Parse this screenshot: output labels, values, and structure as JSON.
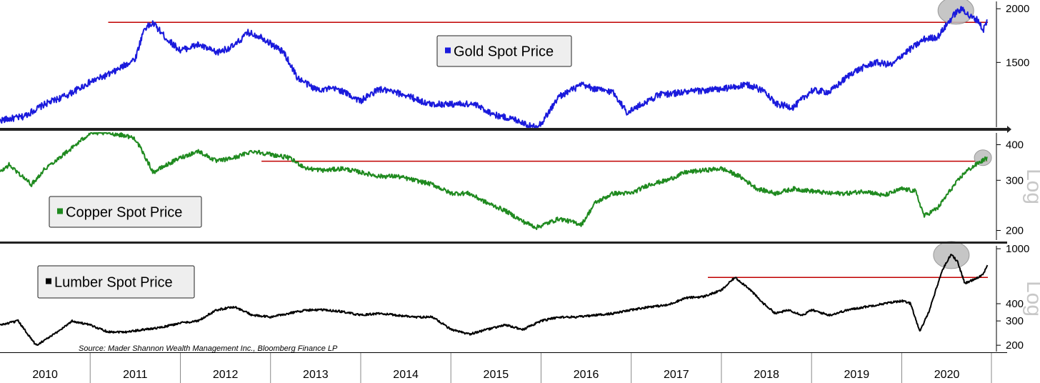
{
  "source": "Source: Mader Shannon Wealth Management Inc., Bloomberg Finance LP",
  "colors": {
    "gold": "#1a1adc",
    "copper": "#1f8a1f",
    "lumber": "#000000",
    "reference_line": "#c00000",
    "highlight": "#bdbdbd"
  },
  "chart_data": [
    {
      "type": "line",
      "title": "",
      "legend": "Gold Spot Price",
      "x": [
        2010.0,
        2010.25,
        2010.5,
        2010.75,
        2011.0,
        2011.25,
        2011.5,
        2011.6,
        2011.7,
        2011.85,
        2012.0,
        2012.2,
        2012.4,
        2012.6,
        2012.75,
        2012.9,
        2013.0,
        2013.15,
        2013.3,
        2013.5,
        2013.75,
        2014.0,
        2014.2,
        2014.5,
        2014.75,
        2015.0,
        2015.25,
        2015.5,
        2015.75,
        2015.9,
        2016.0,
        2016.2,
        2016.45,
        2016.6,
        2016.8,
        2016.95,
        2017.0,
        2017.3,
        2017.6,
        2017.8,
        2018.0,
        2018.3,
        2018.5,
        2018.6,
        2018.8,
        2019.0,
        2019.2,
        2019.45,
        2019.7,
        2019.9,
        2020.0,
        2020.15,
        2020.25,
        2020.4,
        2020.55,
        2020.6,
        2020.68,
        2020.75,
        2020.85,
        2020.9,
        2020.95
      ],
      "y": [
        1100,
        1120,
        1200,
        1260,
        1350,
        1420,
        1530,
        1800,
        1850,
        1700,
        1600,
        1650,
        1580,
        1640,
        1760,
        1720,
        1660,
        1580,
        1380,
        1300,
        1300,
        1220,
        1300,
        1260,
        1200,
        1200,
        1200,
        1130,
        1100,
        1060,
        1080,
        1250,
        1330,
        1300,
        1280,
        1150,
        1160,
        1260,
        1280,
        1290,
        1300,
        1330,
        1280,
        1200,
        1180,
        1290,
        1280,
        1420,
        1500,
        1480,
        1560,
        1640,
        1700,
        1720,
        1900,
        1960,
        2000,
        1920,
        1880,
        1780,
        1880
      ],
      "ylim": [
        1060,
        2080
      ],
      "yticks": [
        1500,
        2000
      ],
      "yscale": "log",
      "reference_line": 1860,
      "highlight": [
        {
          "x": 2020.6,
          "y": 1980
        }
      ]
    },
    {
      "type": "line",
      "title": "",
      "legend": "Copper Spot Price",
      "x": [
        2010.0,
        2010.1,
        2010.35,
        2010.5,
        2010.8,
        2011.0,
        2011.2,
        2011.4,
        2011.5,
        2011.7,
        2011.85,
        2012.0,
        2012.2,
        2012.4,
        2012.6,
        2012.8,
        2013.0,
        2013.2,
        2013.4,
        2013.6,
        2013.8,
        2014.0,
        2014.2,
        2014.4,
        2014.6,
        2014.8,
        2015.0,
        2015.2,
        2015.4,
        2015.6,
        2015.8,
        2015.95,
        2016.2,
        2016.45,
        2016.6,
        2016.8,
        2017.0,
        2017.2,
        2017.4,
        2017.6,
        2017.8,
        2018.0,
        2018.2,
        2018.4,
        2018.6,
        2018.8,
        2019.0,
        2019.2,
        2019.4,
        2019.6,
        2019.8,
        2020.0,
        2020.15,
        2020.25,
        2020.4,
        2020.55,
        2020.7,
        2020.85,
        2020.95
      ],
      "y": [
        320,
        340,
        290,
        330,
        390,
        440,
        440,
        430,
        420,
        320,
        340,
        360,
        380,
        350,
        360,
        380,
        370,
        360,
        330,
        325,
        330,
        320,
        310,
        310,
        300,
        290,
        270,
        270,
        250,
        235,
        215,
        205,
        220,
        210,
        250,
        270,
        270,
        290,
        300,
        320,
        325,
        330,
        310,
        280,
        270,
        280,
        275,
        270,
        270,
        275,
        265,
        280,
        275,
        225,
        240,
        280,
        320,
        345,
        360
      ],
      "ylim": [
        185,
        440
      ],
      "yticks": [
        200,
        300,
        400
      ],
      "yscale": "log",
      "axis_label": "Log",
      "reference_line": 350,
      "highlight": [
        {
          "x": 2020.9,
          "y": 360
        }
      ]
    },
    {
      "type": "line",
      "title": "",
      "legend": "Lumber Spot Price",
      "x": [
        2010.0,
        2010.2,
        2010.4,
        2010.6,
        2010.8,
        2011.0,
        2011.2,
        2011.4,
        2011.6,
        2011.8,
        2012.0,
        2012.2,
        2012.4,
        2012.6,
        2012.8,
        2013.0,
        2013.2,
        2013.4,
        2013.6,
        2013.8,
        2014.0,
        2014.2,
        2014.4,
        2014.6,
        2014.8,
        2015.0,
        2015.2,
        2015.4,
        2015.6,
        2015.8,
        2016.0,
        2016.2,
        2016.4,
        2016.6,
        2016.8,
        2017.0,
        2017.2,
        2017.4,
        2017.6,
        2017.8,
        2018.0,
        2018.15,
        2018.3,
        2018.45,
        2018.6,
        2018.75,
        2018.9,
        2019.0,
        2019.2,
        2019.4,
        2019.6,
        2019.8,
        2020.0,
        2020.1,
        2020.2,
        2020.3,
        2020.45,
        2020.55,
        2020.62,
        2020.7,
        2020.8,
        2020.9,
        2020.95
      ],
      "y": [
        280,
        300,
        200,
        240,
        300,
        280,
        250,
        250,
        260,
        270,
        290,
        300,
        360,
        380,
        330,
        320,
        340,
        360,
        360,
        350,
        330,
        340,
        330,
        320,
        320,
        260,
        240,
        260,
        280,
        260,
        300,
        320,
        320,
        330,
        340,
        360,
        380,
        390,
        440,
        450,
        500,
        620,
        520,
        410,
        340,
        360,
        330,
        360,
        330,
        360,
        380,
        400,
        420,
        400,
        250,
        350,
        700,
        920,
        800,
        560,
        600,
        650,
        760
      ],
      "ylim": [
        180,
        1050
      ],
      "yticks": [
        200,
        300,
        400,
        1000
      ],
      "yscale": "log",
      "axis_label": "Log",
      "reference_line": 620,
      "highlight": [
        {
          "x": 2020.55,
          "y": 900
        }
      ]
    }
  ],
  "x_axis": {
    "labels": [
      "2010",
      "2011",
      "2012",
      "2013",
      "2014",
      "2015",
      "2016",
      "2017",
      "2018",
      "2019",
      "2020"
    ]
  }
}
